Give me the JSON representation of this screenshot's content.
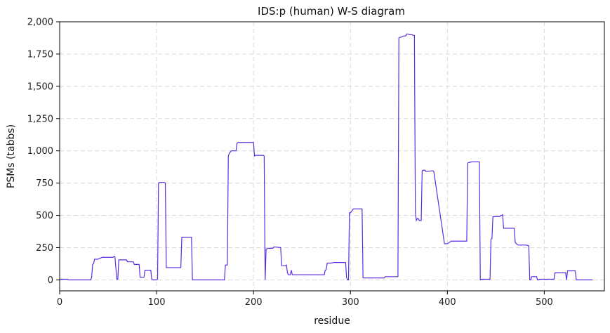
{
  "chart_data": {
    "type": "line",
    "title": "IDS:p (human) W-S diagram",
    "xlabel": "residue",
    "ylabel": "PSMs (tabbs)",
    "xlim": [
      0,
      562
    ],
    "ylim": [
      -85,
      2000
    ],
    "xticks": [
      0,
      100,
      200,
      300,
      400,
      500
    ],
    "xtick_labels": [
      "0",
      "100",
      "200",
      "300",
      "400",
      "500"
    ],
    "yticks": [
      0,
      250,
      500,
      750,
      1000,
      1250,
      1500,
      1750,
      2000
    ],
    "ytick_labels": [
      "0",
      "250",
      "500",
      "750",
      "1,000",
      "1,250",
      "1,500",
      "1,750",
      "2,000"
    ],
    "grid": true,
    "colors": {
      "series": "#5b2de0"
    },
    "series": [
      {
        "x": [
          0,
          1,
          8,
          9,
          32,
          33,
          34,
          35,
          36,
          39,
          41,
          44,
          55,
          56,
          57,
          59,
          60,
          61,
          68,
          69,
          70,
          71,
          72,
          76,
          77,
          78,
          82,
          83,
          84,
          87,
          88,
          89,
          94,
          95,
          96,
          100,
          101,
          102,
          103,
          104,
          108,
          109,
          110,
          111,
          124,
          125,
          126,
          127,
          135,
          136,
          137,
          170,
          171,
          173,
          174,
          175,
          177,
          182,
          183,
          184,
          199,
          200,
          201,
          202,
          209,
          210,
          211,
          212,
          213,
          214,
          215,
          220,
          221,
          222,
          228,
          229,
          230,
          233,
          234,
          235,
          236,
          237,
          238,
          239,
          240,
          241,
          272,
          273,
          274,
          275,
          276,
          280,
          283,
          286,
          295,
          296,
          297,
          298,
          299,
          300,
          302,
          303,
          306,
          312,
          313,
          314,
          335,
          336,
          337,
          349,
          350,
          351,
          352,
          355,
          357,
          358,
          360,
          361,
          363,
          365,
          366,
          367,
          368,
          369,
          370,
          371,
          372,
          373,
          374,
          375,
          376,
          377,
          378,
          384,
          385,
          386,
          397,
          398,
          399,
          400,
          404,
          405,
          406,
          420,
          421,
          422,
          423,
          425,
          426,
          432,
          433,
          434,
          435,
          443,
          444,
          445,
          446,
          447,
          448,
          453,
          454,
          455,
          456,
          457,
          458,
          468,
          469,
          470,
          472,
          473,
          482,
          483,
          484,
          485,
          486,
          487,
          491,
          492,
          493,
          494,
          495,
          496,
          497,
          510,
          511,
          520,
          521,
          522,
          523,
          524,
          525,
          532,
          533,
          550
        ],
        "values": [
          0,
          5,
          5,
          0,
          0,
          20,
          120,
          125,
          160,
          160,
          165,
          175,
          175,
          180,
          180,
          5,
          5,
          155,
          155,
          155,
          140,
          140,
          140,
          140,
          120,
          120,
          120,
          20,
          20,
          20,
          75,
          75,
          75,
          5,
          0,
          0,
          5,
          750,
          755,
          755,
          755,
          750,
          95,
          95,
          95,
          95,
          330,
          330,
          330,
          330,
          0,
          0,
          115,
          115,
          960,
          980,
          1000,
          1000,
          1060,
          1065,
          1065,
          1065,
          960,
          965,
          965,
          965,
          960,
          0,
          240,
          240,
          245,
          245,
          255,
          255,
          250,
          110,
          110,
          110,
          115,
          55,
          40,
          40,
          40,
          75,
          40,
          40,
          40,
          40,
          75,
          80,
          130,
          130,
          135,
          135,
          135,
          20,
          0,
          0,
          520,
          520,
          540,
          550,
          550,
          550,
          15,
          15,
          15,
          25,
          25,
          25,
          1875,
          1880,
          1880,
          1890,
          1890,
          1905,
          1905,
          1900,
          1900,
          1895,
          1895,
          520,
          460,
          475,
          475,
          460,
          460,
          460,
          845,
          850,
          850,
          850,
          840,
          845,
          845,
          840,
          280,
          280,
          280,
          280,
          300,
          300,
          300,
          300,
          905,
          910,
          910,
          915,
          915,
          915,
          915,
          0,
          5,
          5,
          5,
          315,
          320,
          490,
          490,
          490,
          490,
          500,
          500,
          505,
          400,
          400,
          400,
          290,
          275,
          270,
          270,
          265,
          265,
          0,
          0,
          25,
          25,
          25,
          0,
          0,
          5,
          5,
          5,
          5,
          55,
          55,
          55,
          55,
          0,
          70,
          70,
          70,
          0,
          0
        ]
      }
    ]
  }
}
